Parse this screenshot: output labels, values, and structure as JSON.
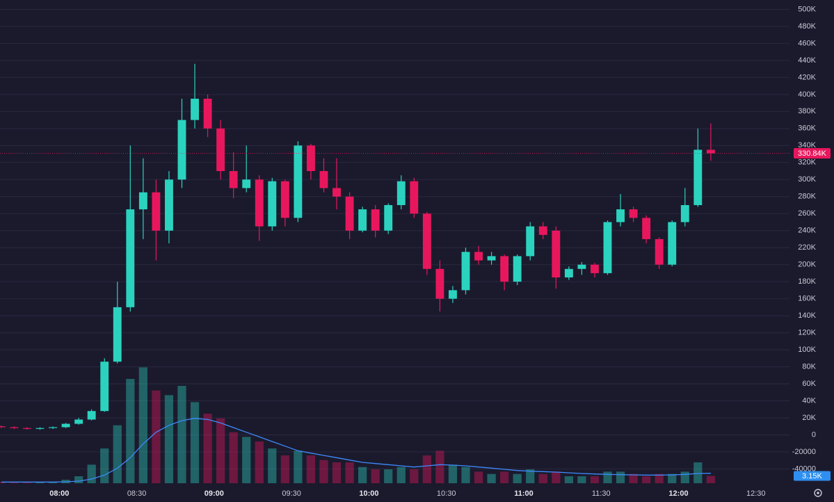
{
  "chart_data": {
    "type": "candlestick",
    "x": [
      "07:35",
      "07:40",
      "07:45",
      "07:50",
      "07:55",
      "08:00",
      "08:05",
      "08:10",
      "08:15",
      "08:20",
      "08:25",
      "08:30",
      "08:35",
      "08:40",
      "08:45",
      "08:50",
      "08:55",
      "09:00",
      "09:05",
      "09:10",
      "09:15",
      "09:20",
      "09:25",
      "09:30",
      "09:35",
      "09:40",
      "09:45",
      "09:50",
      "09:55",
      "10:00",
      "10:05",
      "10:10",
      "10:15",
      "10:20",
      "10:25",
      "10:30",
      "10:35",
      "10:40",
      "10:45",
      "10:50",
      "10:55",
      "11:00",
      "11:05",
      "11:10",
      "11:15",
      "11:20",
      "11:25",
      "11:30",
      "11:35",
      "11:40",
      "11:45",
      "11:50",
      "11:55",
      "12:00",
      "12:05",
      "12:10"
    ],
    "open": [
      10000,
      9000,
      8000,
      7000,
      8000,
      9000,
      13000,
      18000,
      28000,
      86000,
      150000,
      265000,
      285000,
      240000,
      300000,
      370000,
      395000,
      360000,
      310000,
      290000,
      300000,
      245000,
      298000,
      255000,
      340000,
      310000,
      290000,
      280000,
      240000,
      265000,
      240000,
      270000,
      298000,
      260000,
      195000,
      160000,
      170000,
      215000,
      205000,
      210000,
      180000,
      210000,
      245000,
      240000,
      185000,
      195000,
      200000,
      190000,
      250000,
      265000,
      255000,
      230000,
      200000,
      250000,
      270000,
      335000
    ],
    "high": [
      11000,
      10000,
      9000,
      9000,
      10000,
      14000,
      20000,
      30000,
      90000,
      180000,
      340000,
      325000,
      300000,
      310000,
      395000,
      436000,
      400000,
      370000,
      332000,
      340000,
      305000,
      302000,
      300000,
      345000,
      342000,
      325000,
      325000,
      285000,
      268000,
      270000,
      272000,
      305000,
      302000,
      262000,
      205000,
      175000,
      220000,
      222000,
      215000,
      212000,
      212000,
      250000,
      250000,
      245000,
      198000,
      203000,
      202000,
      252000,
      283000,
      268000,
      258000,
      232000,
      252000,
      290000,
      360000,
      366000
    ],
    "low": [
      8000,
      7000,
      6000,
      6000,
      7000,
      8000,
      12000,
      17000,
      27000,
      84000,
      145000,
      230000,
      205000,
      225000,
      290000,
      360000,
      350000,
      300000,
      278000,
      285000,
      228000,
      240000,
      245000,
      250000,
      300000,
      285000,
      265000,
      230000,
      238000,
      232000,
      236000,
      265000,
      255000,
      188000,
      145000,
      155000,
      165000,
      200000,
      200000,
      170000,
      176000,
      205000,
      230000,
      172000,
      182000,
      188000,
      185000,
      188000,
      245000,
      250000,
      225000,
      195000,
      198000,
      245000,
      268000,
      322000
    ],
    "close": [
      9000,
      8000,
      7000,
      8000,
      9000,
      13000,
      18000,
      28000,
      86000,
      150000,
      265000,
      285000,
      240000,
      300000,
      370000,
      395000,
      360000,
      310000,
      290000,
      300000,
      245000,
      298000,
      255000,
      340000,
      310000,
      290000,
      280000,
      240000,
      265000,
      240000,
      270000,
      298000,
      260000,
      195000,
      160000,
      170000,
      215000,
      205000,
      210000,
      180000,
      210000,
      245000,
      235000,
      185000,
      195000,
      200000,
      190000,
      250000,
      265000,
      255000,
      230000,
      200000,
      250000,
      270000,
      335000,
      330840
    ],
    "last_price_label": "330.84K",
    "volume": [
      500,
      500,
      500,
      500,
      500,
      1500,
      3000,
      8000,
      15000,
      25000,
      45000,
      50000,
      40000,
      38000,
      42000,
      35000,
      30000,
      28000,
      22000,
      20000,
      18000,
      15000,
      12000,
      14000,
      12000,
      10000,
      9000,
      9000,
      7000,
      6000,
      6000,
      7000,
      6000,
      12000,
      14000,
      8000,
      7000,
      5000,
      4000,
      5000,
      4000,
      6000,
      4000,
      5000,
      3000,
      3000,
      3000,
      5000,
      5000,
      4000,
      3000,
      4000,
      4000,
      5000,
      9000,
      3150
    ],
    "last_volume_label": "3.15K",
    "volume_ma": [
      500,
      500,
      500,
      500,
      500,
      600,
      900,
      1800,
      3500,
      6500,
      11000,
      17000,
      22000,
      25000,
      27000,
      28000,
      27500,
      26000,
      24000,
      22000,
      20000,
      18000,
      16000,
      14000,
      13000,
      12000,
      11000,
      10000,
      9000,
      8500,
      8000,
      7500,
      7000,
      7500,
      8000,
      7800,
      7500,
      7000,
      6500,
      6000,
      5500,
      5200,
      5000,
      4800,
      4500,
      4200,
      4000,
      3800,
      3700,
      3600,
      3500,
      3500,
      3600,
      3800,
      4200,
      4300
    ],
    "volume_lim": [
      0,
      60000
    ],
    "up_color": "#2bd3bf",
    "down_color": "#e8175d",
    "volume_ma_color": "#3d8bfd",
    "volume_label_color": "#2e8ff0",
    "ylim": [
      -65000,
      511000
    ],
    "yticks": [
      -40000,
      -20000,
      0,
      {
        "value": 20000,
        "label": "20K"
      },
      {
        "value": 40000,
        "label": "40K"
      },
      {
        "value": 60000,
        "label": "60K"
      },
      {
        "value": 80000,
        "label": "80K"
      },
      {
        "value": 100000,
        "label": "100K"
      },
      {
        "value": 120000,
        "label": "120K"
      },
      {
        "value": 140000,
        "label": "140K"
      },
      {
        "value": 160000,
        "label": "160K"
      },
      {
        "value": 180000,
        "label": "180K"
      },
      {
        "value": 200000,
        "label": "200K"
      },
      {
        "value": 220000,
        "label": "220K"
      },
      {
        "value": 240000,
        "label": "240K"
      },
      {
        "value": 260000,
        "label": "260K"
      },
      {
        "value": 280000,
        "label": "280K"
      },
      {
        "value": 300000,
        "label": "300K"
      },
      {
        "value": 320000,
        "label": "320K"
      },
      {
        "value": 340000,
        "label": "340K"
      },
      {
        "value": 360000,
        "label": "360K"
      },
      {
        "value": 380000,
        "label": "380K"
      },
      {
        "value": 400000,
        "label": "400K"
      },
      {
        "value": 420000,
        "label": "420K"
      },
      {
        "value": 440000,
        "label": "440K"
      },
      {
        "value": 460000,
        "label": "460K"
      },
      {
        "value": 480000,
        "label": "480K"
      },
      {
        "value": 500000,
        "label": "500K"
      }
    ],
    "xlim": [
      "07:37",
      "12:43"
    ],
    "xticks": [
      "08:00",
      "08:30",
      "09:00",
      "09:30",
      "10:00",
      "10:30",
      "11:00",
      "11:30",
      "12:00",
      "12:30"
    ],
    "grid": true
  }
}
